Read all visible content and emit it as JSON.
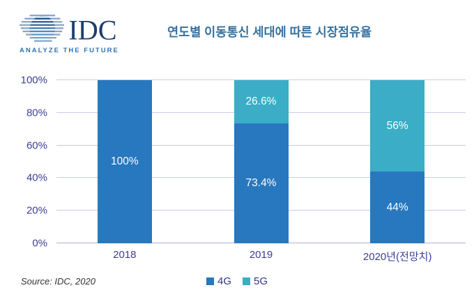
{
  "header": {
    "logo_text": "IDC",
    "logo_tagline": "ANALYZE THE FUTURE",
    "title": "연도별 이동통신 세대에 따른 시장점유율"
  },
  "chart_data": {
    "type": "bar",
    "stacked": true,
    "title": "연도별 이동통신 세대에 따른 시장점유율",
    "categories": [
      "2018",
      "2019",
      "2020년(전망치)"
    ],
    "series": [
      {
        "name": "4G",
        "color": "#2778BE",
        "values": [
          100,
          73.4,
          44
        ],
        "labels": [
          "100%",
          "73.4%",
          "44%"
        ]
      },
      {
        "name": "5G",
        "color": "#3BADC7",
        "values": [
          0,
          26.6,
          56
        ],
        "labels": [
          "",
          "26.6%",
          "56%"
        ]
      }
    ],
    "y_ticks": [
      "0%",
      "20%",
      "40%",
      "60%",
      "80%",
      "100%"
    ],
    "ylim": [
      0,
      100
    ],
    "grid": true,
    "legend_position": "bottom"
  },
  "footer": {
    "source": "Source: IDC, 2020"
  },
  "colors": {
    "bar_4g": "#2778BE",
    "bar_5g": "#3BADC7",
    "gridline": "#C8CCE8",
    "axis_line": "#ABB1D8",
    "tick_label": "#3A3F96",
    "title": "#35719F",
    "logo_navy": "#1C3E6E",
    "logo_tagline_blue": "#2E74B5",
    "legend_text": "#2F3788"
  }
}
